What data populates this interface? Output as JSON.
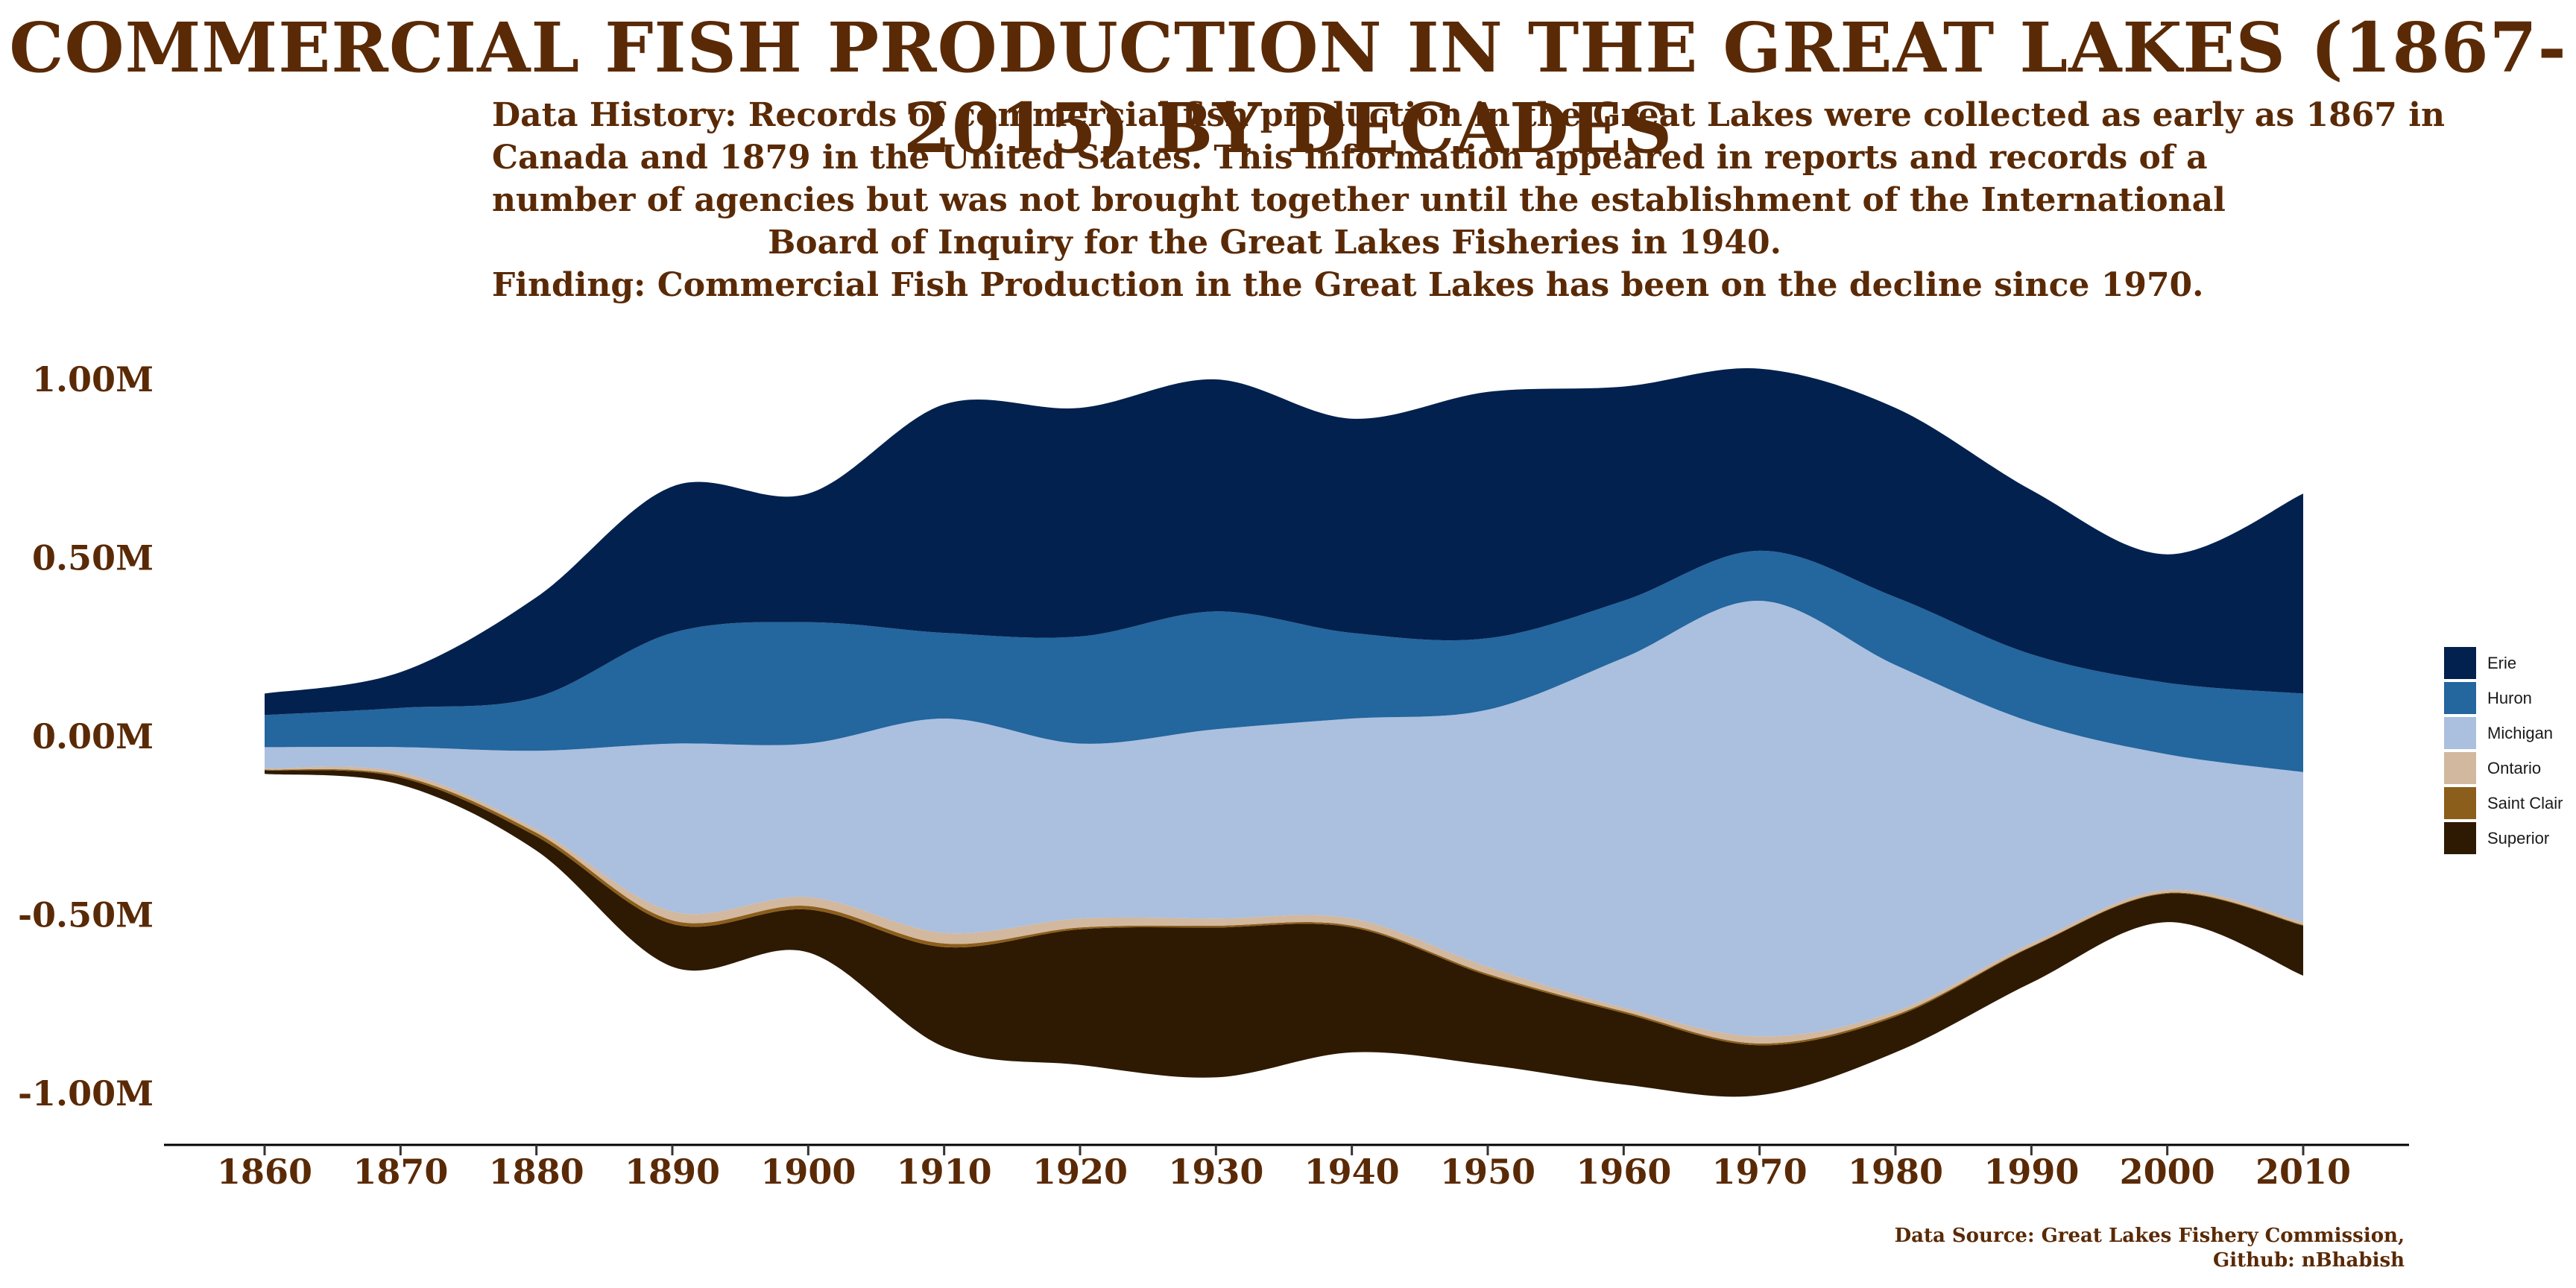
{
  "chart_data": {
    "type": "area",
    "subtype": "streamgraph",
    "title": "COMMERCIAL FISH PRODUCTION IN THE GREAT LAKES (1867-2015) BY DECADES",
    "subtitle_lines": [
      "Data History: Records of commercial fish production in the Great Lakes were collected as early as 1867 in",
      "Canada and 1879 in the United States. This information appeared in reports and records of a",
      "number of agencies but was not brought together until the establishment of the International",
      "Board of Inquiry for the Great Lakes Fisheries in 1940.",
      "Finding: Commercial Fish Production in the Great Lakes has been on the decline since 1970."
    ],
    "caption_lines": [
      "Data Source: Great Lakes Fishery Commission,",
      "Github: nBhabish"
    ],
    "xlabel": "",
    "ylabel": "",
    "x": [
      1860,
      1870,
      1880,
      1890,
      1900,
      1910,
      1920,
      1930,
      1940,
      1950,
      1960,
      1970,
      1980,
      1990,
      2000,
      2010
    ],
    "xlim": [
      1860,
      2010
    ],
    "ylim": [
      -1.0,
      1.0
    ],
    "y_ticks": [
      {
        "value": 1.0,
        "label": "1.00M"
      },
      {
        "value": 0.5,
        "label": "0.50M"
      },
      {
        "value": 0.0,
        "label": "0.00M"
      },
      {
        "value": -0.5,
        "label": "-0.50M"
      },
      {
        "value": -1.0,
        "label": "-1.00M"
      }
    ],
    "x_ticks": [
      "1860",
      "1870",
      "1880",
      "1890",
      "1900",
      "1910",
      "1920",
      "1930",
      "1940",
      "1950",
      "1960",
      "1970",
      "1980",
      "1990",
      "2000",
      "2010"
    ],
    "baseline": [
      -0.105,
      -0.135,
      -0.32,
      -0.645,
      -0.605,
      -0.87,
      -0.92,
      -0.955,
      -0.885,
      -0.92,
      -0.975,
      -1.005,
      -0.885,
      -0.69,
      -0.52,
      -0.67
    ],
    "series": [
      {
        "name": "Superior",
        "color": "#2e1a02",
        "values": [
          0.01,
          0.02,
          0.04,
          0.12,
          0.12,
          0.28,
          0.38,
          0.42,
          0.35,
          0.25,
          0.2,
          0.14,
          0.1,
          0.1,
          0.08,
          0.14
        ]
      },
      {
        "name": "Saint Clair",
        "color": "#8c5e1b",
        "values": [
          0.002,
          0.005,
          0.01,
          0.01,
          0.01,
          0.01,
          0.005,
          0.005,
          0.005,
          0.005,
          0.005,
          0.005,
          0.005,
          0.002,
          0.002,
          0.002
        ]
      },
      {
        "name": "Ontario",
        "color": "#d2b89e",
        "values": [
          0.003,
          0.01,
          0.01,
          0.025,
          0.025,
          0.03,
          0.025,
          0.02,
          0.02,
          0.02,
          0.01,
          0.02,
          0.01,
          0.008,
          0.008,
          0.008
        ]
      },
      {
        "name": "Michigan",
        "color": "#abbfdf",
        "values": [
          0.06,
          0.07,
          0.22,
          0.47,
          0.43,
          0.6,
          0.49,
          0.53,
          0.56,
          0.72,
          0.98,
          1.22,
          0.97,
          0.62,
          0.38,
          0.42
        ]
      },
      {
        "name": "Huron",
        "color": "#24669e",
        "values": [
          0.09,
          0.11,
          0.15,
          0.31,
          0.34,
          0.24,
          0.3,
          0.33,
          0.24,
          0.2,
          0.16,
          0.14,
          0.19,
          0.19,
          0.2,
          0.22
        ]
      },
      {
        "name": "Erie",
        "color": "#02214e",
        "values": [
          0.06,
          0.1,
          0.28,
          0.41,
          0.36,
          0.64,
          0.64,
          0.65,
          0.6,
          0.69,
          0.6,
          0.51,
          0.53,
          0.46,
          0.36,
          0.56
        ]
      }
    ],
    "legend": {
      "position": "right",
      "order": [
        "Erie",
        "Huron",
        "Michigan",
        "Ontario",
        "Saint Clair",
        "Superior"
      ]
    },
    "grid": false
  }
}
